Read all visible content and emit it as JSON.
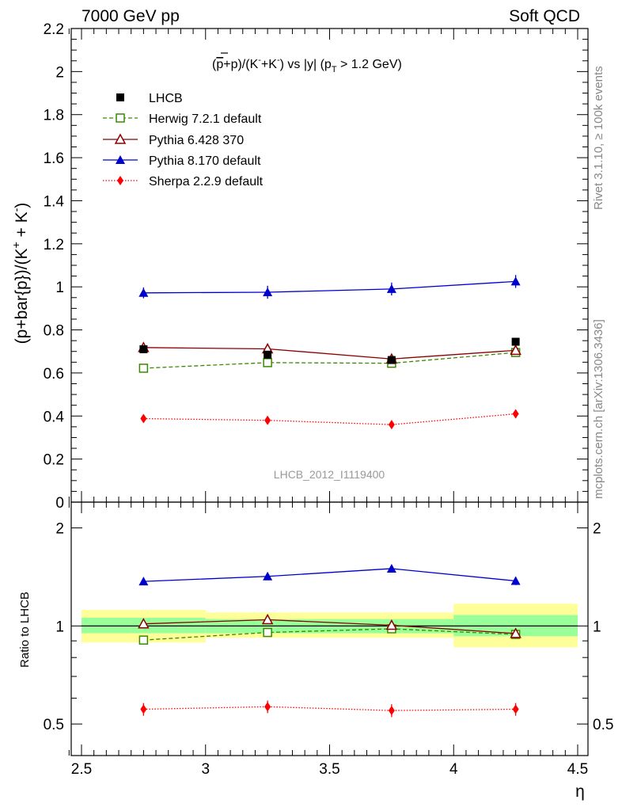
{
  "header": {
    "left": "7000 GeV pp",
    "right": "Soft QCD"
  },
  "side_labels": {
    "rivet": "Rivet 3.1.10, ≥ 100k events",
    "mcplots": "mcplots.cern.ch [arXiv:1306.3436]"
  },
  "watermark": "LHCB_2012_I1119400",
  "colors": {
    "lhcb": "#000000",
    "herwig": "#3a8a00",
    "pythia6": "#8b0000",
    "pythia8": "#0000cc",
    "sherpa": "#ff0000",
    "band_inner": "#99ff99",
    "band_outer": "#ffff99"
  },
  "chart_data": [
    {
      "type": "line",
      "panel": "main",
      "title_parts": {
        "pre": "(",
        "pbar": "p",
        "mid": "+p)/(K",
        "k1sup": "-",
        "plus": "+K",
        "k2sup": "-",
        "post": ") vs |y| (p",
        "sub": "T",
        "tail": " > 1.2 GeV)"
      },
      "ylabel_parts": {
        "a": "(p+bar{p})/(K",
        "sup1": "+",
        "b": " + K",
        "sup2": "-",
        "c": ")"
      },
      "xlim": [
        2.5,
        4.5
      ],
      "ylim": [
        0,
        2.2
      ],
      "yticks": [
        0,
        0.2,
        0.4,
        0.6,
        0.8,
        1,
        1.2,
        1.4,
        1.6,
        1.8,
        2,
        2.2
      ],
      "ytick_labels": [
        "0",
        "0.2",
        "0.4",
        "0.6",
        "0.8",
        "1",
        "1.2",
        "1.4",
        "1.6",
        "1.8",
        "2",
        "2.2"
      ],
      "x": [
        2.75,
        3.25,
        3.75,
        4.25
      ],
      "series": [
        {
          "key": "lhcb",
          "name": "LHCB",
          "marker": "square",
          "values": [
            0.71,
            0.685,
            0.66,
            0.745
          ],
          "errors": [
            0.01,
            0.01,
            0.01,
            0.01
          ]
        },
        {
          "key": "herwig",
          "name": "Herwig 7.2.1 default",
          "marker": "open-square",
          "values": [
            0.622,
            0.648,
            0.645,
            0.695
          ],
          "errors": [
            0.01,
            0.01,
            0.01,
            0.01
          ]
        },
        {
          "key": "pythia6",
          "name": "Pythia 6.428 370",
          "marker": "open-triangle",
          "values": [
            0.718,
            0.712,
            0.665,
            0.705
          ],
          "errors": [
            0.02,
            0.02,
            0.02,
            0.02
          ]
        },
        {
          "key": "pythia8",
          "name": "Pythia 8.170 default",
          "marker": "triangle",
          "values": [
            0.972,
            0.975,
            0.99,
            1.025
          ],
          "errors": [
            0.025,
            0.03,
            0.03,
            0.03
          ]
        },
        {
          "key": "sherpa",
          "name": "Sherpa 2.2.9 default",
          "marker": "diamond",
          "values": [
            0.388,
            0.38,
            0.36,
            0.41
          ],
          "errors": [
            0.015,
            0.015,
            0.015,
            0.02
          ]
        }
      ]
    },
    {
      "type": "line",
      "panel": "ratio",
      "ylabel": "Ratio to LHCB",
      "xlabel": "η",
      "xlim": [
        2.5,
        4.5
      ],
      "ylim": [
        0.4,
        2.4
      ],
      "yscale": "log",
      "yticks": [
        0.5,
        1,
        2
      ],
      "ytick_labels": [
        "0.5",
        "1",
        "2"
      ],
      "xticks": [
        2.5,
        3,
        3.5,
        4,
        4.5
      ],
      "xtick_labels": [
        "2.5",
        "3",
        "3.5",
        "4",
        "4.5"
      ],
      "x": [
        2.75,
        3.25,
        3.75,
        4.25
      ],
      "bands": [
        {
          "x0": 2.5,
          "x1": 3.0,
          "inner": [
            0.95,
            1.06
          ],
          "outer": [
            0.89,
            1.12
          ]
        },
        {
          "x0": 3.0,
          "x1": 4.0,
          "inner": [
            0.95,
            1.05
          ],
          "outer": [
            0.92,
            1.1
          ]
        },
        {
          "x0": 4.0,
          "x1": 4.5,
          "inner": [
            0.93,
            1.08
          ],
          "outer": [
            0.86,
            1.17
          ]
        }
      ],
      "series": [
        {
          "key": "herwig",
          "marker": "open-square",
          "values": [
            0.905,
            0.955,
            0.98,
            0.942
          ],
          "errors": [
            0.015,
            0.015,
            0.015,
            0.015
          ]
        },
        {
          "key": "pythia6",
          "marker": "open-triangle",
          "values": [
            1.015,
            1.045,
            1.005,
            0.948
          ],
          "errors": [
            0.02,
            0.02,
            0.02,
            0.02
          ]
        },
        {
          "key": "pythia8",
          "marker": "triangle",
          "values": [
            1.37,
            1.42,
            1.5,
            1.375
          ],
          "errors": [
            0.03,
            0.03,
            0.04,
            0.04
          ]
        },
        {
          "key": "sherpa",
          "marker": "diamond",
          "values": [
            0.555,
            0.565,
            0.55,
            0.555
          ],
          "errors": [
            0.025,
            0.025,
            0.025,
            0.025
          ]
        }
      ]
    }
  ]
}
